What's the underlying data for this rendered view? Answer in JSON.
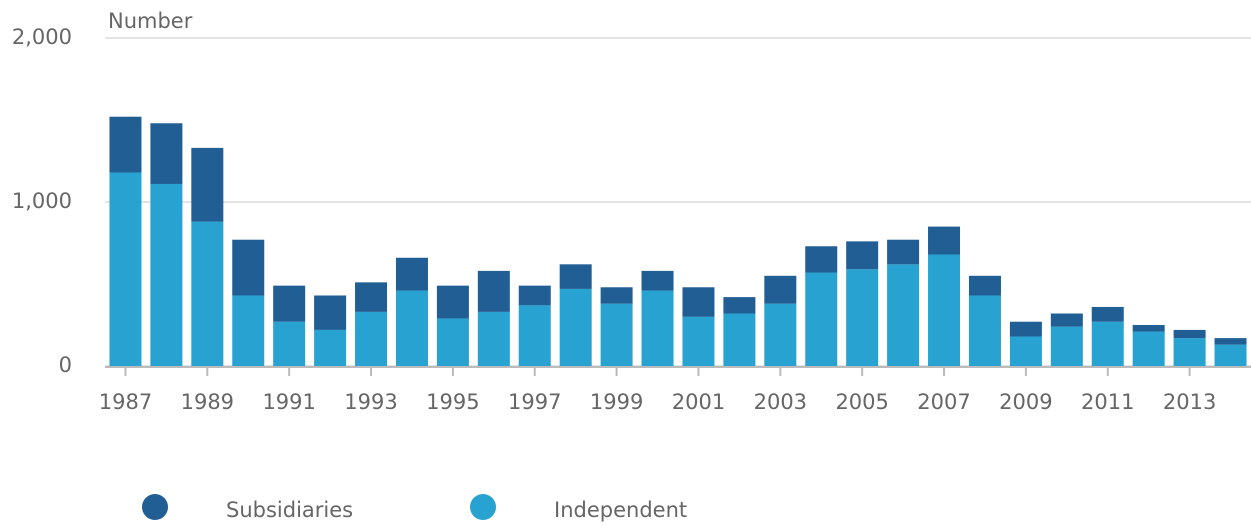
{
  "chart_data": {
    "type": "stacked_bar",
    "y_axis_label": "Number",
    "categories": [
      "1987",
      null,
      "1989",
      null,
      "1991",
      null,
      "1993",
      null,
      "1995",
      null,
      "1997",
      null,
      "1999",
      null,
      "2001",
      null,
      "2003",
      null,
      "2005",
      null,
      "2007",
      null,
      "2009",
      null,
      "2011",
      null,
      "2013",
      null
    ],
    "series": [
      {
        "name": "Subsidiaries",
        "color": "#215e93",
        "values": [
          340,
          370,
          450,
          340,
          220,
          210,
          180,
          200,
          200,
          250,
          120,
          150,
          100,
          120,
          180,
          100,
          170,
          160,
          170,
          150,
          170,
          120,
          90,
          80,
          90,
          40,
          50,
          40
        ]
      },
      {
        "name": "Independent",
        "color": "#28a2d0",
        "values": [
          1180,
          1110,
          880,
          430,
          270,
          220,
          330,
          460,
          290,
          330,
          370,
          470,
          380,
          460,
          300,
          320,
          380,
          570,
          590,
          620,
          680,
          430,
          180,
          240,
          270,
          210,
          170,
          130
        ]
      }
    ],
    "ylim": [
      0,
      2000
    ],
    "yticks": [
      0,
      {
        "value": 1000,
        "label": "1,000"
      },
      {
        "value": 2000,
        "label": "2,000"
      }
    ],
    "grid": true
  }
}
